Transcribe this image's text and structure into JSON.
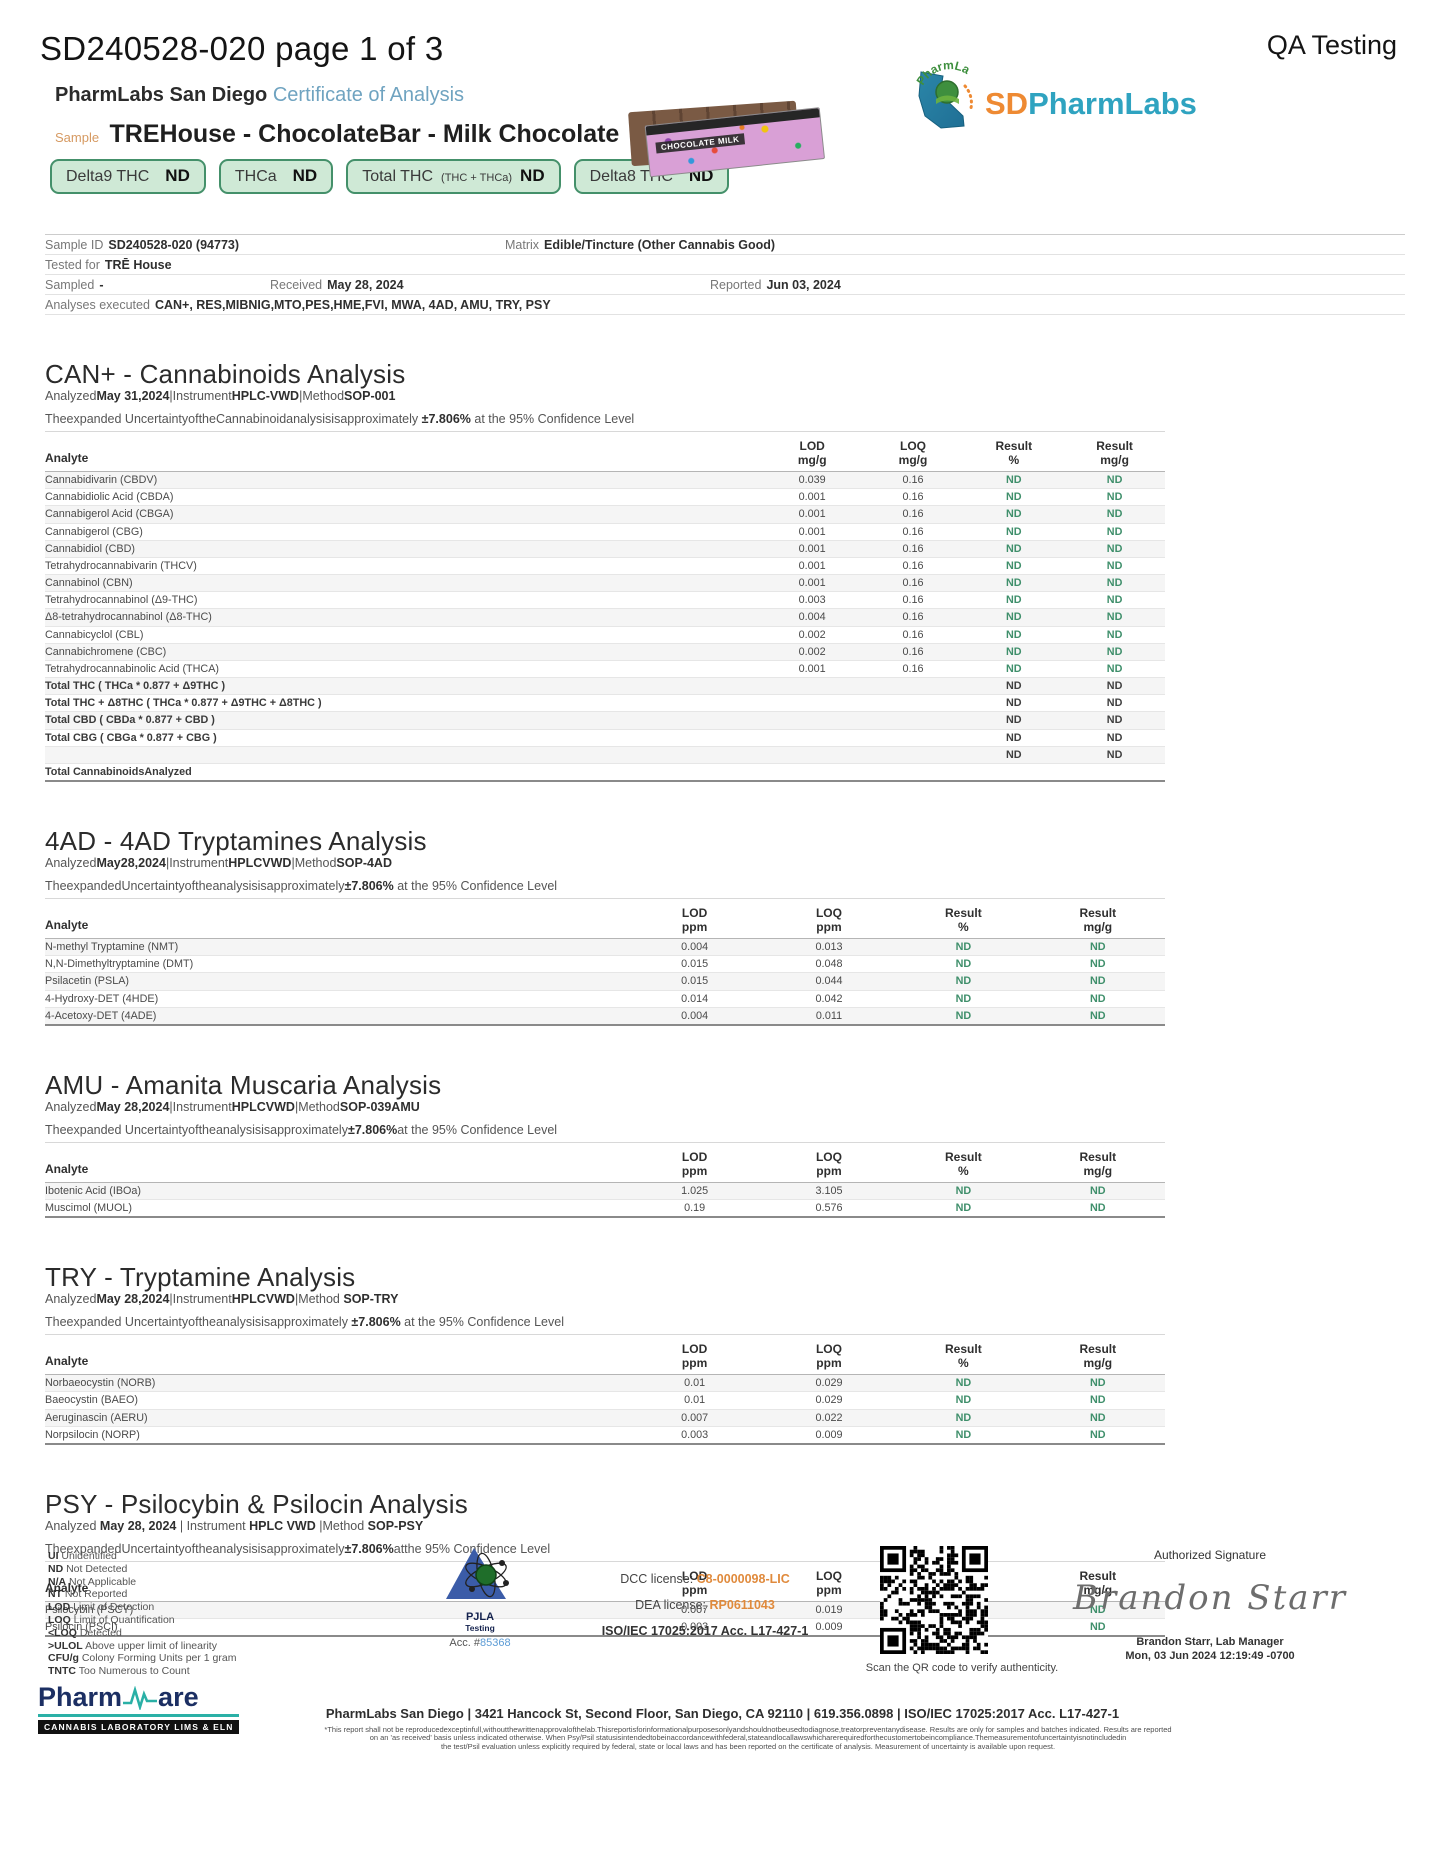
{
  "page": {
    "doc_id": "SD240528-020 page 1 of 3",
    "qa_label": "QA Testing"
  },
  "brand": {
    "lab_name": "PharmLabs San Diego",
    "coa_label": "Certificate of Analysis",
    "logo_sd": "SD",
    "logo_pharmlabs": "PharmLabs",
    "logo_arc": "PharmLabs",
    "colors": {
      "badge_green_bg": "#CFE9D6",
      "badge_green_border": "#44906A",
      "nd_green": "#3F8F6B",
      "coa_blue": "#6FA3C0",
      "sample_orange": "#D69A62",
      "brand_orange": "#EE8A33",
      "brand_teal": "#2FA3C0",
      "license_orange": "#E08A3C",
      "acc_blue": "#5B9BD5",
      "pjla_blue": "#3B5CA8"
    }
  },
  "sample": {
    "sample_label": "Sample",
    "name": "TREHouse - ChocolateBar - Milk Chocolate",
    "product_label": "CHOCOLATE MILK",
    "badges": [
      {
        "label": "Delta9 THC",
        "sub": "",
        "value": "ND"
      },
      {
        "label": "THCa",
        "sub": "",
        "value": "ND"
      },
      {
        "label": "Total THC",
        "sub": "(THC + THCa)",
        "value": "ND"
      },
      {
        "label": "Delta8 THC",
        "sub": "",
        "value": "ND"
      }
    ]
  },
  "sample_info": {
    "sample_id_label": "Sample ID",
    "sample_id": "SD240528-020 (94773)",
    "matrix_label": "Matrix",
    "matrix": "Edible/Tincture (Other Cannabis Good)",
    "tested_for_label": "Tested for",
    "tested_for": "TRĒ House",
    "sampled_label": "Sampled",
    "sampled": "-",
    "received_label": "Received",
    "received": "May 28, 2024",
    "reported_label": "Reported",
    "reported": "Jun 03, 2024",
    "analyses_label": "Analyses executed",
    "analyses": "CAN+, RES,MIBNIG,MTO,PES,HME,FVI, MWA, 4AD, AMU, TRY, PSY"
  },
  "sections": [
    {
      "id": "can",
      "title": "CAN+ - Cannabinoids Analysis",
      "meta": {
        "analyzed_label": "Analyzed",
        "analyzed": "May 31,2024",
        "sep1": "|",
        "instrument_label": "Instrument",
        "instrument": "HPLC-VWD",
        "sep2": "|",
        "method_label": "Method",
        "method": "SOP-001"
      },
      "uncertainty_pre": "Theexpanded UncertaintyoftheCannabinoidanalysisisapproximately ",
      "uncertainty_bold": "±7.806%",
      "uncertainty_post": " at the 95% Confidence Level",
      "columns": {
        "analyte": "Analyte",
        "lod_label": "LOD",
        "lod_unit": "mg/g",
        "loq_label": "LOQ",
        "loq_unit": "mg/g",
        "res_pct_label": "Result",
        "res_pct_unit": "%",
        "res_mg_label": "Result",
        "res_mg_unit": "mg/g"
      },
      "rows": [
        {
          "analyte": "Cannabidivarin (CBDV)",
          "lod": "0.039",
          "loq": "0.16",
          "result_pct": "ND",
          "result_mgg": "ND"
        },
        {
          "analyte": "Cannabidiolic Acid (CBDA)",
          "lod": "0.001",
          "loq": "0.16",
          "result_pct": "ND",
          "result_mgg": "ND"
        },
        {
          "analyte": "Cannabigerol Acid (CBGA)",
          "lod": "0.001",
          "loq": "0.16",
          "result_pct": "ND",
          "result_mgg": "ND"
        },
        {
          "analyte": "Cannabigerol (CBG)",
          "lod": "0.001",
          "loq": "0.16",
          "result_pct": "ND",
          "result_mgg": "ND"
        },
        {
          "analyte": "Cannabidiol (CBD)",
          "lod": "0.001",
          "loq": "0.16",
          "result_pct": "ND",
          "result_mgg": "ND"
        },
        {
          "analyte": "Tetrahydrocannabivarin (THCV)",
          "lod": "0.001",
          "loq": "0.16",
          "result_pct": "ND",
          "result_mgg": "ND"
        },
        {
          "analyte": "Cannabinol (CBN)",
          "lod": "0.001",
          "loq": "0.16",
          "result_pct": "ND",
          "result_mgg": "ND"
        },
        {
          "analyte": "Tetrahydrocannabinol (Δ9-THC)",
          "lod": "0.003",
          "loq": "0.16",
          "result_pct": "ND",
          "result_mgg": "ND"
        },
        {
          "analyte": "Δ8-tetrahydrocannabinol (Δ8-THC)",
          "lod": "0.004",
          "loq": "0.16",
          "result_pct": "ND",
          "result_mgg": "ND"
        },
        {
          "analyte": "Cannabicyclol (CBL)",
          "lod": "0.002",
          "loq": "0.16",
          "result_pct": "ND",
          "result_mgg": "ND"
        },
        {
          "analyte": "Cannabichromene (CBC)",
          "lod": "0.002",
          "loq": "0.16",
          "result_pct": "ND",
          "result_mgg": "ND"
        },
        {
          "analyte": "Tetrahydrocannabinolic Acid (THCA)",
          "lod": "0.001",
          "loq": "0.16",
          "result_pct": "ND",
          "result_mgg": "ND"
        },
        {
          "analyte": "Total THC ( THCa * 0.877 + Δ9THC )",
          "kind": "total",
          "result_pct": "ND",
          "result_mgg": "ND"
        },
        {
          "analyte": "Total THC + Δ8THC ( THCa * 0.877 + Δ9THC + Δ8THC )",
          "kind": "total",
          "result_pct": "ND",
          "result_mgg": "ND"
        },
        {
          "analyte": "Total CBD ( CBDa * 0.877 + CBD )",
          "kind": "total",
          "result_pct": "ND",
          "result_mgg": "ND"
        },
        {
          "analyte": "Total CBG ( CBGa * 0.877 + CBG )",
          "kind": "total",
          "result_pct": "ND",
          "result_mgg": "ND"
        },
        {
          "analyte": "",
          "kind": "total",
          "result_pct": "ND",
          "result_mgg": "ND"
        },
        {
          "analyte": "Total CannabinoidsAnalyzed",
          "kind": "grand"
        }
      ]
    },
    {
      "id": "4ad",
      "title": "4AD - 4AD Tryptamines Analysis",
      "meta": {
        "analyzed_label": "Analyzed",
        "analyzed": "May28,2024",
        "sep1": "|",
        "instrument_label": "Instrument",
        "instrument": "HPLCVWD",
        "sep2": "|",
        "method_label": "Method",
        "method": "SOP-4AD"
      },
      "uncertainty_pre": "TheexpandedUncertaintyoftheanalysisisapproximately",
      "uncertainty_bold": "±7.806%",
      "uncertainty_post": " at the 95% Confidence Level",
      "columns": {
        "analyte": "Analyte",
        "lod_label": "LOD",
        "lod_unit": "ppm",
        "loq_label": "LOQ",
        "loq_unit": "ppm",
        "res_pct_label": "Result",
        "res_pct_unit": "%",
        "res_mg_label": "Result",
        "res_mg_unit": "mg/g"
      },
      "rows": [
        {
          "analyte": "N-methyl Tryptamine (NMT)",
          "lod": "0.004",
          "loq": "0.013",
          "result_pct": "ND",
          "result_mgg": "ND"
        },
        {
          "analyte": "N,N-Dimethyltryptamine (DMT)",
          "lod": "0.015",
          "loq": "0.048",
          "result_pct": "ND",
          "result_mgg": "ND"
        },
        {
          "analyte": "Psilacetin (PSLA)",
          "lod": "0.015",
          "loq": "0.044",
          "result_pct": "ND",
          "result_mgg": "ND"
        },
        {
          "analyte": "4-Hydroxy-DET (4HDE)",
          "lod": "0.014",
          "loq": "0.042",
          "result_pct": "ND",
          "result_mgg": "ND"
        },
        {
          "analyte": "4-Acetoxy-DET (4ADE)",
          "lod": "0.004",
          "loq": "0.011",
          "result_pct": "ND",
          "result_mgg": "ND"
        }
      ]
    },
    {
      "id": "amu",
      "title": "AMU - Amanita Muscaria Analysis",
      "meta": {
        "analyzed_label": "Analyzed",
        "analyzed": "May 28,2024",
        "sep1": "|",
        "instrument_label": "Instrument",
        "instrument": "HPLCVWD",
        "sep2": "|",
        "method_label": "Method",
        "method": "SOP-039AMU"
      },
      "uncertainty_pre": "Theexpanded Uncertaintyoftheanalysisisapproximately",
      "uncertainty_bold": "±7.806%",
      "uncertainty_post": "at the 95% Confidence Level",
      "columns": {
        "analyte": "Analyte",
        "lod_label": "LOD",
        "lod_unit": "ppm",
        "loq_label": "LOQ",
        "loq_unit": "ppm",
        "res_pct_label": "Result",
        "res_pct_unit": "%",
        "res_mg_label": "Result",
        "res_mg_unit": "mg/g"
      },
      "rows": [
        {
          "analyte": "Ibotenic Acid (IBOa)",
          "lod": "1.025",
          "loq": "3.105",
          "result_pct": "ND",
          "result_mgg": "ND"
        },
        {
          "analyte": "Muscimol (MUOL)",
          "lod": "0.19",
          "loq": "0.576",
          "result_pct": "ND",
          "result_mgg": "ND"
        }
      ]
    },
    {
      "id": "try",
      "title": "TRY - Tryptamine Analysis",
      "meta": {
        "analyzed_label": "Analyzed",
        "analyzed": "May 28,2024",
        "sep1": "|",
        "instrument_label": "Instrument",
        "instrument": "HPLCVWD",
        "sep2": "|",
        "method_label": "Method ",
        "method": "SOP-TRY"
      },
      "uncertainty_pre": "Theexpanded Uncertaintyoftheanalysisisapproximately ",
      "uncertainty_bold": "±7.806%",
      "uncertainty_post": " at the 95% Confidence Level",
      "columns": {
        "analyte": "Analyte",
        "lod_label": "LOD",
        "lod_unit": "ppm",
        "loq_label": "LOQ",
        "loq_unit": "ppm",
        "res_pct_label": "Result",
        "res_pct_unit": "%",
        "res_mg_label": "Result",
        "res_mg_unit": "mg/g"
      },
      "rows": [
        {
          "analyte": "Norbaeocystin (NORB)",
          "lod": "0.01",
          "loq": "0.029",
          "result_pct": "ND",
          "result_mgg": "ND"
        },
        {
          "analyte": "Baeocystin (BAEO)",
          "lod": "0.01",
          "loq": "0.029",
          "result_pct": "ND",
          "result_mgg": "ND"
        },
        {
          "analyte": "Aeruginascin (AERU)",
          "lod": "0.007",
          "loq": "0.022",
          "result_pct": "ND",
          "result_mgg": "ND"
        },
        {
          "analyte": "Norpsilocin (NORP)",
          "lod": "0.003",
          "loq": "0.009",
          "result_pct": "ND",
          "result_mgg": "ND"
        }
      ]
    },
    {
      "id": "psy",
      "title": "PSY - Psilocybin & Psilocin Analysis",
      "meta": {
        "analyzed_label": "Analyzed ",
        "analyzed": "May 28, 2024 ",
        "sep1": "| ",
        "instrument_label": "Instrument ",
        "instrument": "HPLC VWD ",
        "sep2": "|",
        "method_label": "Method ",
        "method": "SOP-PSY"
      },
      "uncertainty_pre": "TheexpandedUncertaintyoftheanalysisisapproximately",
      "uncertainty_bold": "±7.806%",
      "uncertainty_post": "atthe 95% Confidence Level",
      "columns": {
        "analyte": "Analyte",
        "lod_label": "LOD",
        "lod_unit": "ppm",
        "loq_label": "LOQ",
        "loq_unit": "ppm",
        "res_pct_label": "Result",
        "res_pct_unit": "%",
        "res_mg_label": "Result",
        "res_mg_unit": "mg/g"
      },
      "rows": [
        {
          "analyte": "Psilocybin (PSCY)",
          "lod": "0.007",
          "loq": "0.019",
          "result_pct": "ND",
          "result_mgg": "ND"
        },
        {
          "analyte": "Psilocin (PSCI)",
          "lod": "0.003",
          "loq": "0.009",
          "result_pct": "ND",
          "result_mgg": "ND"
        }
      ]
    }
  ],
  "footer": {
    "legend": [
      {
        "abbr": "UI",
        "text": "Unidentified"
      },
      {
        "abbr": "ND",
        "text": "Not Detected"
      },
      {
        "abbr": "N/A",
        "text": "Not Applicable"
      },
      {
        "abbr": "NT",
        "text": "Not Reported"
      },
      {
        "abbr": "LOD",
        "text": "Limit of Detection"
      },
      {
        "abbr": "LOQ",
        "text": "Limit of Quantification"
      },
      {
        "abbr": "<LOQ",
        "text": "Detected"
      },
      {
        "abbr": ">ULOL",
        "text": "Above upper limit of linearity"
      },
      {
        "abbr": "CFU/g",
        "text": "Colony Forming Units per 1 gram"
      },
      {
        "abbr": "TNTC",
        "text": "Too Numerous to Count"
      }
    ],
    "pjla": {
      "name": "PJLA",
      "sub": "Testing",
      "acc_label": "Acc. #",
      "acc": "85368"
    },
    "licenses": {
      "dcc_label": "DCC license: ",
      "dcc": "C8-0000098-LIC",
      "dea_label": "DEA license: ",
      "dea": "RP0611043",
      "iso": "ISO/IEC 17025:2017 Acc. L17-427-1"
    },
    "qr_caption": "Scan the QR code to verify authenticity.",
    "signature": {
      "title": "Authorized Signature",
      "script": "Brandon Starr",
      "name": "Brandon Starr, Lab Manager",
      "date": "Mon, 03 Jun 2024 12:19:49 -0700"
    },
    "address": "PharmLabs San Diego | 3421 Hancock St, Second Floor, San Diego, CA 92110 | 619.356.0898 | ISO/IEC 17025:2017 Acc. L17-427-1",
    "disclaimer": [
      "*This report shall not be reproducedexceptinfull,withoutthewrittenapprovalofthelab.Thisreportisforinformationalpurposesonlyandshouldnotbeusedtodiagnose,treatorpreventanydisease. Results are only for samples and batches indicated. Results are reported",
      "on an 'as received' basis unless indicated otherwise. When Psy/Psil statusisintendedtobeinaccordancewithfederal,stateandlocallawswhicharerequiredforthecustomertobeincompliance.Themeasurementofuncertaintyisnotincludedin",
      "the test/Psil evaluation unless explicitly required by federal, state or local laws and has been reported on the certificate of analysis. Measurement of uncertainty is available upon request."
    ],
    "pharmware": {
      "name1": "Pharm",
      "name2": "are",
      "tag": "CANNABIS LABORATORY LIMS & ELN"
    }
  }
}
